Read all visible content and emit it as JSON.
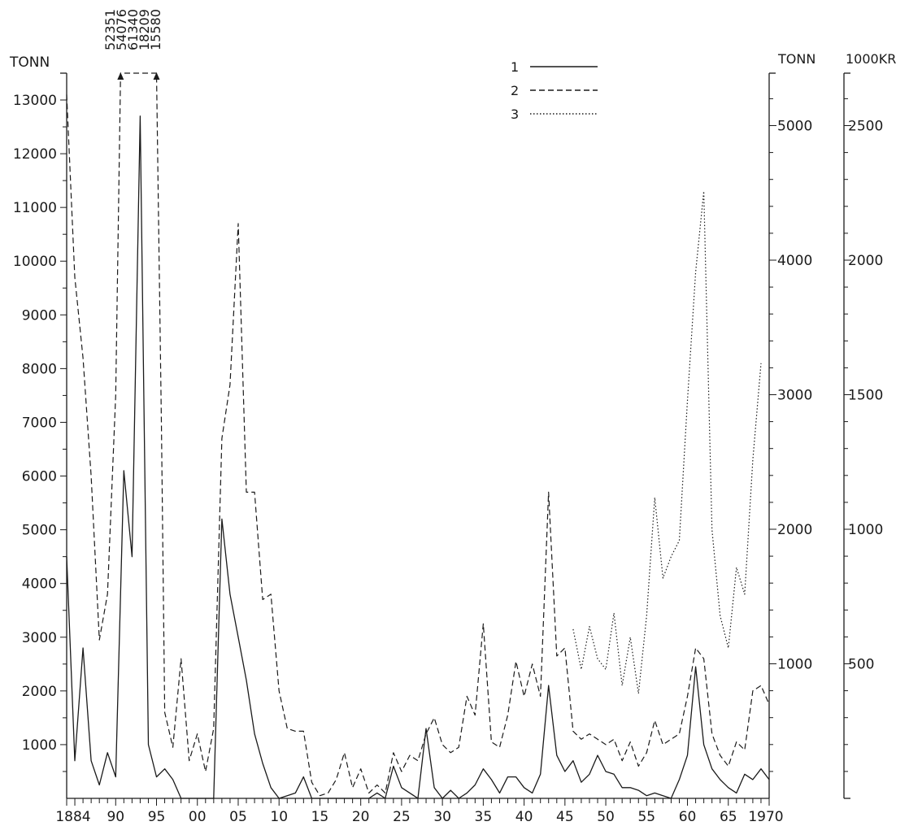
{
  "chart_data": {
    "type": "line",
    "left_axis": {
      "unit": "TONN",
      "ticks": [
        1000,
        2000,
        3000,
        4000,
        5000,
        6000,
        7000,
        8000,
        9000,
        10000,
        11000,
        12000,
        13000
      ],
      "tick_labels": [
        "1000",
        "2000",
        "3000",
        "4000",
        "5000",
        "6000",
        "7000",
        "8000",
        "9000",
        "10000",
        "11000",
        "12000",
        "13000"
      ],
      "ylim": [
        0,
        13500
      ]
    },
    "right_axis_1": {
      "unit": "TONN",
      "ticks": [
        1000,
        2000,
        3000,
        4000,
        5000
      ],
      "tick_labels": [
        "1000",
        "2000",
        "3000",
        "4000",
        "5000"
      ]
    },
    "right_axis_2": {
      "unit": "1000KR",
      "ticks": [
        500,
        1000,
        1500,
        2000,
        2500
      ],
      "tick_labels": [
        "500",
        "1000",
        "1500",
        "2000",
        "2500"
      ]
    },
    "x_axis": {
      "xlim": [
        1884,
        1970
      ],
      "ticks": [
        1884,
        1890,
        1895,
        1900,
        1905,
        1910,
        1915,
        1920,
        1925,
        1930,
        1935,
        1940,
        1945,
        1950,
        1955,
        1960,
        1965,
        1970
      ],
      "tick_labels": [
        "1884",
        "90",
        "95",
        "00",
        "05",
        "10",
        "15",
        "20",
        "25",
        "30",
        "35",
        "40",
        "45",
        "50",
        "55",
        "60",
        "65",
        "1970"
      ]
    },
    "legend": {
      "position": "top-center",
      "entries": [
        {
          "label": "1",
          "style": "solid"
        },
        {
          "label": "2",
          "style": "dashed"
        },
        {
          "label": "3",
          "style": "dotted"
        }
      ]
    },
    "off_scale_annotations": [
      "52351",
      "54076",
      "61340",
      "18209",
      "15580"
    ],
    "series": [
      {
        "label": "1",
        "style": "solid",
        "points": [
          [
            1884,
            4500
          ],
          [
            1885,
            700
          ],
          [
            1886,
            2800
          ],
          [
            1887,
            700
          ],
          [
            1888,
            250
          ],
          [
            1889,
            850
          ],
          [
            1890,
            400
          ],
          [
            1891,
            6100
          ],
          [
            1892,
            4500
          ],
          [
            1893,
            12700
          ],
          [
            1894,
            1000
          ],
          [
            1895,
            400
          ],
          [
            1896,
            550
          ],
          [
            1897,
            350
          ],
          [
            1898,
            0
          ],
          [
            1902,
            0
          ],
          [
            1903,
            5200
          ],
          [
            1904,
            3800
          ],
          [
            1905,
            3000
          ],
          [
            1906,
            2200
          ],
          [
            1907,
            1200
          ],
          [
            1908,
            650
          ],
          [
            1909,
            200
          ],
          [
            1910,
            0
          ],
          [
            1911,
            50
          ],
          [
            1912,
            100
          ],
          [
            1913,
            400
          ],
          [
            1914,
            0
          ],
          [
            1921,
            0
          ],
          [
            1922,
            100
          ],
          [
            1923,
            0
          ],
          [
            1924,
            600
          ],
          [
            1925,
            200
          ],
          [
            1926,
            100
          ],
          [
            1927,
            0
          ],
          [
            1928,
            1300
          ],
          [
            1929,
            200
          ],
          [
            1930,
            0
          ],
          [
            1931,
            150
          ],
          [
            1932,
            0
          ],
          [
            1933,
            100
          ],
          [
            1934,
            250
          ],
          [
            1935,
            550
          ],
          [
            1936,
            350
          ],
          [
            1937,
            100
          ],
          [
            1938,
            400
          ],
          [
            1939,
            400
          ],
          [
            1940,
            200
          ],
          [
            1941,
            100
          ],
          [
            1942,
            450
          ],
          [
            1943,
            2100
          ],
          [
            1944,
            800
          ],
          [
            1945,
            500
          ],
          [
            1946,
            700
          ],
          [
            1947,
            300
          ],
          [
            1948,
            450
          ],
          [
            1949,
            800
          ],
          [
            1950,
            500
          ],
          [
            1951,
            450
          ],
          [
            1952,
            200
          ],
          [
            1953,
            200
          ],
          [
            1954,
            150
          ],
          [
            1955,
            50
          ],
          [
            1956,
            100
          ],
          [
            1957,
            50
          ],
          [
            1958,
            0
          ],
          [
            1959,
            350
          ],
          [
            1960,
            800
          ],
          [
            1961,
            2450
          ],
          [
            1962,
            1000
          ],
          [
            1963,
            550
          ],
          [
            1964,
            350
          ],
          [
            1965,
            200
          ],
          [
            1966,
            100
          ],
          [
            1967,
            450
          ],
          [
            1968,
            350
          ],
          [
            1969,
            550
          ],
          [
            1970,
            350
          ]
        ]
      },
      {
        "label": "2",
        "style": "dashed",
        "points": [
          [
            1884,
            13100
          ],
          [
            1885,
            9700
          ],
          [
            1886,
            8200
          ],
          [
            1887,
            6000
          ],
          [
            1888,
            2950
          ],
          [
            1889,
            3800
          ],
          [
            1890,
            7500
          ],
          [
            1890.6,
            13500
          ],
          [
            1895,
            13500
          ],
          [
            1895.6,
            7000
          ],
          [
            1896,
            1600
          ],
          [
            1897,
            950
          ],
          [
            1898,
            2600
          ],
          [
            1899,
            700
          ],
          [
            1900,
            1200
          ],
          [
            1901,
            500
          ],
          [
            1902,
            1300
          ],
          [
            1903,
            6700
          ],
          [
            1904,
            7700
          ],
          [
            1905,
            10700
          ],
          [
            1906,
            5700
          ],
          [
            1907,
            5700
          ],
          [
            1908,
            3700
          ],
          [
            1909,
            3800
          ],
          [
            1910,
            2000
          ],
          [
            1911,
            1300
          ],
          [
            1912,
            1250
          ],
          [
            1913,
            1250
          ],
          [
            1914,
            300
          ],
          [
            1915,
            50
          ],
          [
            1916,
            100
          ],
          [
            1917,
            350
          ],
          [
            1918,
            850
          ],
          [
            1919,
            200
          ],
          [
            1920,
            550
          ],
          [
            1921,
            100
          ],
          [
            1922,
            250
          ],
          [
            1923,
            100
          ],
          [
            1924,
            850
          ],
          [
            1925,
            500
          ],
          [
            1926,
            800
          ],
          [
            1927,
            700
          ],
          [
            1928,
            1200
          ],
          [
            1929,
            1500
          ],
          [
            1930,
            1000
          ],
          [
            1931,
            850
          ],
          [
            1932,
            950
          ],
          [
            1933,
            1900
          ],
          [
            1934,
            1550
          ],
          [
            1935,
            3250
          ],
          [
            1936,
            1050
          ],
          [
            1937,
            950
          ],
          [
            1938,
            1550
          ],
          [
            1939,
            2550
          ],
          [
            1940,
            1900
          ],
          [
            1941,
            2500
          ],
          [
            1942,
            1900
          ],
          [
            1943,
            5700
          ],
          [
            1944,
            2650
          ],
          [
            1945,
            2800
          ],
          [
            1946,
            1250
          ],
          [
            1947,
            1100
          ],
          [
            1948,
            1200
          ],
          [
            1949,
            1100
          ],
          [
            1950,
            1000
          ],
          [
            1951,
            1100
          ],
          [
            1952,
            700
          ],
          [
            1953,
            1050
          ],
          [
            1954,
            600
          ],
          [
            1955,
            850
          ],
          [
            1956,
            1450
          ],
          [
            1957,
            1000
          ],
          [
            1958,
            1100
          ],
          [
            1959,
            1200
          ],
          [
            1960,
            1900
          ],
          [
            1961,
            2800
          ],
          [
            1962,
            2600
          ],
          [
            1963,
            1200
          ],
          [
            1964,
            800
          ],
          [
            1965,
            600
          ],
          [
            1966,
            1050
          ],
          [
            1967,
            900
          ],
          [
            1968,
            2000
          ],
          [
            1969,
            2100
          ],
          [
            1970,
            1750
          ]
        ]
      },
      {
        "label": "3",
        "style": "dotted",
        "points": [
          [
            1946,
            3150
          ],
          [
            1947,
            2400
          ],
          [
            1948,
            3200
          ],
          [
            1949,
            2600
          ],
          [
            1950,
            2400
          ],
          [
            1951,
            3450
          ],
          [
            1952,
            2100
          ],
          [
            1953,
            3000
          ],
          [
            1954,
            1950
          ],
          [
            1955,
            3400
          ],
          [
            1956,
            5600
          ],
          [
            1957,
            4100
          ],
          [
            1958,
            4500
          ],
          [
            1959,
            4800
          ],
          [
            1960,
            7400
          ],
          [
            1961,
            9800
          ],
          [
            1962,
            11300
          ],
          [
            1963,
            5000
          ],
          [
            1964,
            3400
          ],
          [
            1965,
            2800
          ],
          [
            1966,
            4300
          ],
          [
            1967,
            3800
          ],
          [
            1968,
            6300
          ],
          [
            1969,
            8100
          ]
        ]
      }
    ]
  }
}
